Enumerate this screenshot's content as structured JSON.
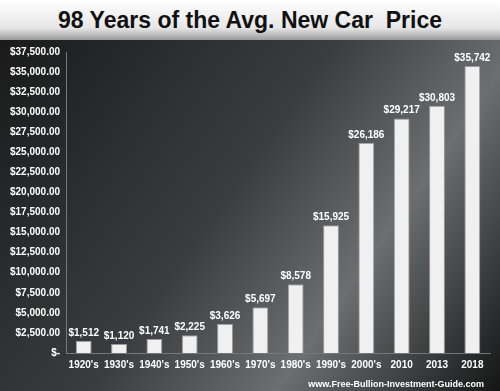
{
  "chart_data": {
    "type": "bar",
    "title": "98 Years of the Avg. New Car  Price",
    "categories": [
      "1920's",
      "1930's",
      "1940's",
      "1950's",
      "1960's",
      "1970's",
      "1980's",
      "1990's",
      "2000's",
      "2010",
      "2013",
      "2018"
    ],
    "values": [
      1512,
      1120,
      1741,
      2225,
      3626,
      5697,
      8578,
      15925,
      26186,
      29217,
      30803,
      35742
    ],
    "value_labels": [
      "$1,512",
      "$1,120",
      "$1,741",
      "$2,225",
      "$3,626",
      "$5,697",
      "$8,578",
      "$15,925",
      "$26,186",
      "$29,217",
      "$30,803",
      "$35,742"
    ],
    "data_labels": true,
    "color": "#f0f0f0",
    "ylim": [
      0,
      37500
    ],
    "yticks": [
      {
        "value": 0,
        "label": "$-"
      },
      {
        "value": 2500,
        "label": "$2,500.00"
      },
      {
        "value": 5000,
        "label": "$5,000.00"
      },
      {
        "value": 7500,
        "label": "$7,500.00"
      },
      {
        "value": 10000,
        "label": "$10,000.00"
      },
      {
        "value": 12500,
        "label": "$12,500.00"
      },
      {
        "value": 15000,
        "label": "$15,000.00"
      },
      {
        "value": 17500,
        "label": "$17,500.00"
      },
      {
        "value": 20000,
        "label": "$20,000.00"
      },
      {
        "value": 22500,
        "label": "$22,500.00"
      },
      {
        "value": 25000,
        "label": "$25,000.00"
      },
      {
        "value": 27500,
        "label": "$27,500.00"
      },
      {
        "value": 30000,
        "label": "$30,000.00"
      },
      {
        "value": 32500,
        "label": "$32,500.00"
      },
      {
        "value": 35000,
        "label": "$35,000.00"
      },
      {
        "value": 37500,
        "label": "$37,500.00"
      }
    ],
    "grid": false,
    "annotations": [
      "www.Free-Bullion-Investment-Guide.com"
    ]
  }
}
